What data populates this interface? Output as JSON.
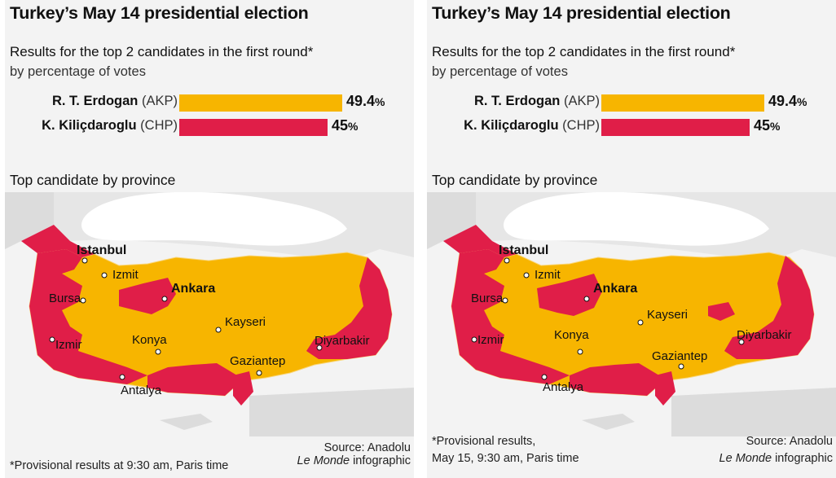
{
  "colors": {
    "akp": "#f7b500",
    "chp": "#e01e48",
    "sea": "#f3f3f3",
    "land": "#dcdcdc",
    "border": "#f7d87a"
  },
  "panels": [
    {
      "title": "Turkey’s May 14 presidential election",
      "subtitle": "Results for the top 2 candidates in the first round*",
      "subtitle2": "by percentage of votes",
      "candidates": [
        {
          "name": "R. T. Erdogan",
          "party": "(AKP)",
          "value": "49.4",
          "pct": "%",
          "share": 49.4
        },
        {
          "name": "K. Kiliçdaroglu",
          "party": "(CHP)",
          "value": "45",
          "pct": "%",
          "share": 45
        }
      ],
      "section_title": "Top candidate by province",
      "cities": {
        "istanbul": "Istanbul",
        "izmit": "Izmit",
        "ankara": "Ankara",
        "bursa": "Bursa",
        "kayseri": "Kayseri",
        "konya": "Konya",
        "izmir": "Izmir",
        "diyarbakir": "Diyarbakir",
        "gaziantep": "Gaziantep",
        "antalya": "Antalya"
      },
      "footnote": [
        "*Provisional results at 9:30 am, Paris time"
      ],
      "source": "Source: Anadolu",
      "brand": "Le Monde",
      "brand_suffix": "infographic"
    },
    {
      "title": "Turkey’s May 14 presidential election",
      "subtitle": "Results for the top 2 candidates in the first round*",
      "subtitle2": "by percentage of votes",
      "candidates": [
        {
          "name": "R. T. Erdogan",
          "party": "(AKP)",
          "value": "49.4",
          "pct": "%",
          "share": 49.4
        },
        {
          "name": "K. Kiliçdaroglu",
          "party": "(CHP)",
          "value": "45",
          "pct": "%",
          "share": 45
        }
      ],
      "section_title": "Top candidate by province",
      "cities": {
        "istanbul": "Istanbul",
        "izmit": "Izmit",
        "ankara": "Ankara",
        "bursa": "Bursa",
        "kayseri": "Kayseri",
        "konya": "Konya",
        "izmir": "Izmir",
        "diyarbakir": "Diyarbakir",
        "gaziantep": "Gaziantep",
        "antalya": "Antalya"
      },
      "footnote": [
        "*Provisional results,",
        "May 15, 9:30 am, Paris time"
      ],
      "source": "Source: Anadolu",
      "brand": "Le Monde",
      "brand_suffix": "infographic"
    }
  ]
}
